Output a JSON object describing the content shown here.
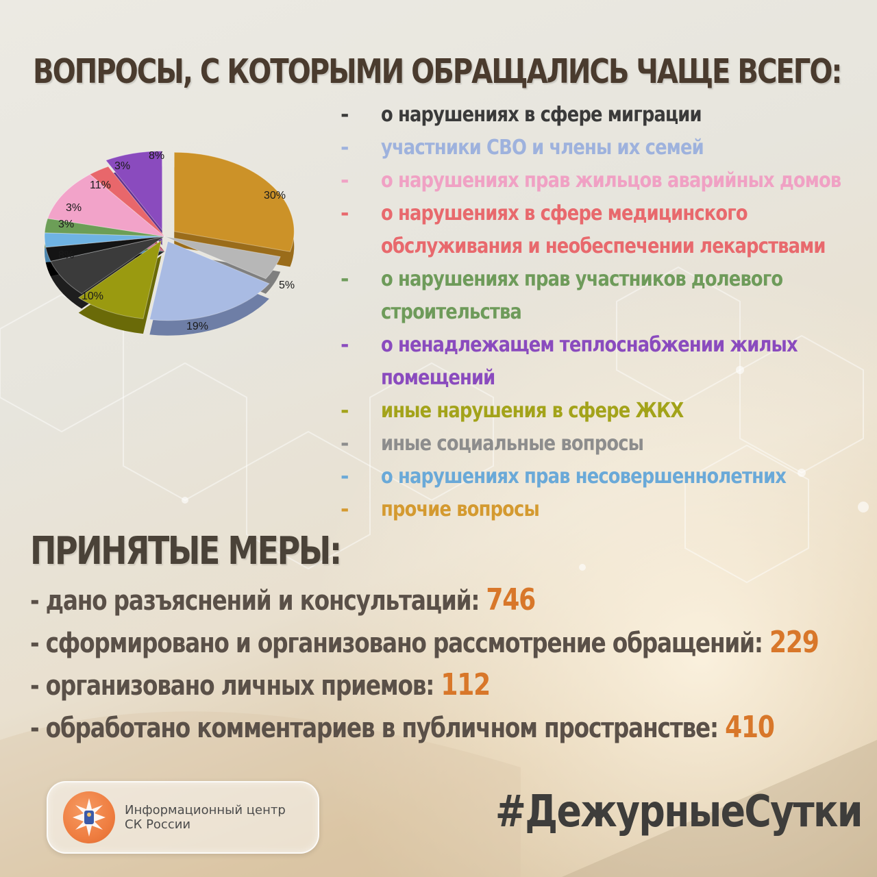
{
  "title": "ВОПРОСЫ, С КОТОРЫМИ ОБРАЩАЛИСЬ ЧАЩЕ ВСЕГО:",
  "chart_data": {
    "type": "pie",
    "title": "",
    "slices": [
      {
        "label": "30%",
        "value": 30,
        "color": "#cc9228",
        "side": "#9a6c1a"
      },
      {
        "label": "5%",
        "value": 5,
        "color": "#b7b7b7",
        "side": "#7f7f7f"
      },
      {
        "label": "19%",
        "value": 19,
        "color": "#a9bbe3",
        "side": "#6e7ea6"
      },
      {
        "label": "10%",
        "value": 10,
        "color": "#9a9a10",
        "side": "#6a6a08"
      },
      {
        "label": "8%",
        "value": 8,
        "color": "#3b3b3b",
        "side": "#1e1e1e"
      },
      {
        "label": "",
        "value": 3,
        "color": "#141414",
        "side": "#000000"
      },
      {
        "label": "3%",
        "value": 3,
        "color": "#6fb3e3",
        "side": "#4a85ad"
      },
      {
        "label": "3%",
        "value": 3,
        "color": "#6c9e57",
        "side": "#4a7439"
      },
      {
        "label": "11%",
        "value": 11,
        "color": "#f2a3c9",
        "side": "#c27898"
      },
      {
        "label": "3%",
        "value": 3,
        "color": "#e8676b",
        "side": "#b04649"
      },
      {
        "label": "8%",
        "value": 8,
        "color": "#8a4bbe",
        "side": "#5f2f8a"
      }
    ]
  },
  "legend": [
    {
      "dash": "-",
      "lines": [
        "о нарушениях в сфере миграции"
      ],
      "color": "#3a3a3a",
      "dash_color": "#3a3a3a"
    },
    {
      "dash": "-",
      "lines": [
        "участники СВО и члены их семей"
      ],
      "color": "#9eb2dd",
      "dash_color": "#9eb2dd"
    },
    {
      "dash": "-",
      "lines": [
        "о нарушениях прав жильцов аварийных домов"
      ],
      "color": "#f0a1c4",
      "dash_color": "#f0a1c4"
    },
    {
      "dash": "-",
      "lines": [
        "о нарушениях в сфере медицинского",
        "обслуживания и необеспечении лекарствами"
      ],
      "color": "#e8696d",
      "dash_color": "#e8696d"
    },
    {
      "dash": "-",
      "lines": [
        "о нарушениях прав участников долевого",
        "строительства"
      ],
      "color": "#6e9b5a",
      "dash_color": "#6e9b5a"
    },
    {
      "dash": "-",
      "lines": [
        "о ненадлежащем теплоснабжении жилых",
        "помещений"
      ],
      "color": "#8a4bbe",
      "dash_color": "#8a4bbe"
    },
    {
      "dash": "-",
      "lines": [
        "иные нарушения в сфере ЖКХ"
      ],
      "color": "#a3a31a",
      "dash_color": "#a3a31a"
    },
    {
      "dash": "-",
      "lines": [
        "иные социальные вопросы"
      ],
      "color": "#8d8d8d",
      "dash_color": "#8d8d8d"
    },
    {
      "dash": "-",
      "lines": [
        "о нарушениях прав несовершеннолетних"
      ],
      "color": "#6aa9d8",
      "dash_color": "#6aa9d8"
    },
    {
      "dash": "-",
      "lines": [
        "прочие вопросы"
      ],
      "color": "#d49a30",
      "dash_color": "#d49a30"
    }
  ],
  "measures": {
    "title": "ПРИНЯТЫЕ МЕРЫ:",
    "items": [
      {
        "label": "- дано разъяснений и консультаций: ",
        "value": "746"
      },
      {
        "label": "- сформировано и организовано рассмотрение обращений: ",
        "value": "229"
      },
      {
        "label": "- организовано личных приемов: ",
        "value": "112"
      },
      {
        "label": "- обработано комментариев в публичном пространстве: ",
        "value": "410"
      }
    ]
  },
  "footer": {
    "org_line1": "Информационный центр",
    "org_line2": "СК России",
    "hashtag": "#ДежурныеСутки"
  }
}
